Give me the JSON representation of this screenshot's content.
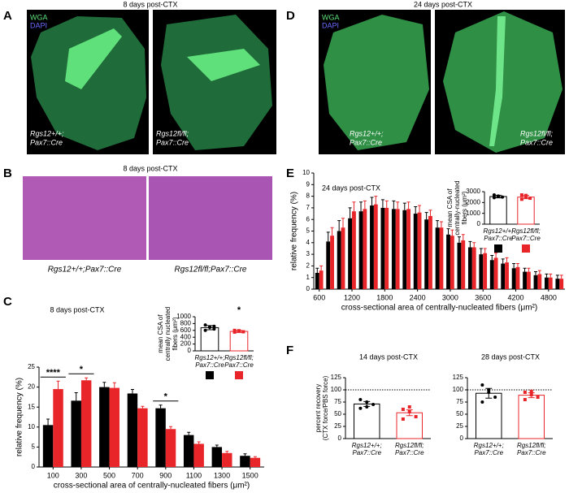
{
  "panels": {
    "A": {
      "letter": "A",
      "title": "8 days post-CTX",
      "stains": [
        "WGA",
        "DAPI"
      ],
      "images": [
        {
          "line1": "Rgs12+/+;",
          "line2": "Pax7::Cre"
        },
        {
          "line1": "Rgs12fl/fl;",
          "line2": "Pax7::Cre"
        }
      ]
    },
    "B": {
      "letter": "B",
      "title": "8 days post-CTX",
      "images": [
        "Rgs12+/+;Pax7::Cre",
        "Rgs12fl/fl;Pax7::Cre"
      ]
    },
    "C": {
      "letter": "C"
    },
    "D": {
      "letter": "D",
      "title": "24 days post-CTX",
      "stains": [
        "WGA",
        "DAPI"
      ],
      "images": [
        {
          "line1": "Rgs12+/+;",
          "line2": "Pax7::Cre"
        },
        {
          "line1": "Rgs12fl/fl;",
          "line2": "Pax7::Cre"
        }
      ]
    },
    "E": {
      "letter": "E"
    },
    "F": {
      "letter": "F"
    }
  },
  "chart_data": [
    {
      "type": "bar",
      "title": "8 days post-CTX",
      "xlabel": "cross-sectional area of centrally-nucleated fibers (μm²)",
      "ylabel": "relative frequency (%)",
      "categories": [
        "100",
        "300",
        "500",
        "700",
        "900",
        "1100",
        "1300",
        "1500"
      ],
      "series": [
        {
          "color": "#000000",
          "values": [
            10.5,
            16.6,
            20,
            18.4,
            14.7,
            8,
            5,
            2.8
          ],
          "errors": [
            1.5,
            2,
            1.2,
            1,
            0.8,
            0.7,
            0.5,
            0.5
          ]
        },
        {
          "color": "#e8262a",
          "values": [
            19.5,
            21.7,
            19.8,
            14.7,
            9.5,
            5.8,
            3.5,
            2.3
          ],
          "errors": [
            2,
            0.6,
            1.3,
            0.5,
            0.6,
            0.5,
            0.4,
            0.3
          ]
        }
      ],
      "ylim": [
        0,
        25
      ],
      "yticks": [
        0,
        5,
        10,
        15,
        20,
        25
      ],
      "annotations": [
        "****",
        "*",
        "*"
      ]
    },
    {
      "type": "dotbar",
      "ylabel": [
        "mean CSA of",
        "centrally nucleated",
        "fibers (μm²)"
      ],
      "categories": [
        [
          "Rgs12+/+;",
          "Pax7::Cre"
        ],
        [
          "Rgs12fl/fl;",
          "Pax7::Cre"
        ]
      ],
      "values": [
        680,
        570
      ],
      "errors": [
        60,
        30
      ],
      "colors": [
        "#000000",
        "#e8262a"
      ],
      "points": [
        [
          760,
          690,
          640,
          600,
          700,
          720
        ],
        [
          600,
          580,
          560,
          550,
          590
        ]
      ],
      "ylim": [
        0,
        1000
      ],
      "yticks": [
        0,
        200,
        400,
        600,
        800,
        1000
      ],
      "annotations": [
        "*"
      ]
    },
    {
      "type": "bar",
      "title": "24 days post-CTX",
      "xlabel": "cross-sectional area of centrally-nucleated fibers (μm²)",
      "ylabel": "relative frequency (%)",
      "categories": [
        "600",
        null,
        null,
        "1200",
        null,
        null,
        "1800",
        null,
        null,
        "2400",
        null,
        null,
        "3000",
        null,
        null,
        "3600",
        null,
        null,
        "4200",
        null,
        null,
        "4800",
        null
      ],
      "series": [
        {
          "color": "#000000",
          "values": [
            1.4,
            4.1,
            5,
            6.1,
            6.7,
            7.2,
            7,
            6.9,
            6.8,
            6.5,
            6,
            5.3,
            4.7,
            4,
            3.6,
            3,
            2.5,
            2.2,
            1.8,
            1.5,
            1.2,
            1,
            0.9
          ],
          "errors": [
            0.4,
            0.8,
            0.9,
            0.9,
            0.8,
            0.7,
            0.7,
            0.7,
            0.6,
            0.6,
            0.6,
            0.6,
            0.5,
            0.5,
            0.5,
            0.5,
            0.4,
            0.4,
            0.4,
            0.3,
            0.3,
            0.3,
            0.3
          ]
        },
        {
          "color": "#e8262a",
          "values": [
            1.6,
            4.6,
            5.3,
            6.7,
            6.9,
            7.3,
            7,
            6.9,
            6.9,
            6.6,
            6.3,
            5.3,
            4.6,
            4.2,
            3.6,
            3.1,
            2.7,
            2.3,
            1.9,
            1.5,
            1.3,
            1,
            0.9
          ],
          "errors": [
            0.4,
            0.7,
            0.8,
            0.8,
            0.7,
            0.7,
            0.6,
            0.6,
            0.6,
            0.6,
            0.5,
            0.5,
            0.5,
            0.5,
            0.4,
            0.4,
            0.4,
            0.4,
            0.3,
            0.3,
            0.3,
            0.3,
            0.3
          ]
        }
      ],
      "ylim": [
        0,
        10
      ],
      "yticks": [
        0,
        1,
        2,
        3,
        4,
        5,
        6,
        7,
        8,
        9,
        10
      ]
    },
    {
      "type": "dotbar",
      "ylabel": [
        "mean CSA of",
        "centrally-nucleated",
        "fibers (μm²)"
      ],
      "categories": [
        [
          "Rgs12+/+;",
          "Pax7::Cre"
        ],
        [
          "Rgs12fl/fl;",
          "Pax7::Cre"
        ]
      ],
      "values": [
        2550,
        2500
      ],
      "errors": [
        120,
        150
      ],
      "colors": [
        "#000000",
        "#e8262a"
      ],
      "points": [
        [
          2700,
          2600,
          2500,
          2450,
          2550
        ],
        [
          2700,
          2650,
          2400,
          2300,
          2500
        ]
      ],
      "ylim": [
        0,
        3000
      ],
      "yticks": [
        0,
        1000,
        2000,
        3000
      ]
    },
    {
      "type": "dotbar",
      "title": "14 days post-CTX",
      "ylabel": [
        "percent recovery",
        "(CTX force/PBS force)"
      ],
      "categories": [
        [
          "Rgs12+/+;",
          "Pax7::Cre"
        ],
        [
          "Rgs12fl/fl;",
          "Pax7::Cre"
        ]
      ],
      "values": [
        71,
        53
      ],
      "errors": [
        5,
        6
      ],
      "colors": [
        "#000000",
        "#e8262a"
      ],
      "points": [
        [
          80,
          75,
          70,
          62,
          65
        ],
        [
          60,
          55,
          45,
          40,
          65
        ]
      ],
      "ylim": [
        0,
        125
      ],
      "yticks": [
        0,
        25,
        50,
        75,
        100,
        125
      ],
      "refline": 100
    },
    {
      "type": "dotbar",
      "title": "28 days post-CTX",
      "categories": [
        [
          "Rgs12+/+;",
          "Pax7::Cre"
        ],
        [
          "Rgs12fl/fl;",
          "Pax7::Cre"
        ]
      ],
      "values": [
        93,
        89
      ],
      "errors": [
        10,
        5
      ],
      "colors": [
        "#000000",
        "#e8262a"
      ],
      "points": [
        [
          110,
          100,
          85,
          75,
          95
        ],
        [
          95,
          90,
          85,
          80,
          97
        ]
      ],
      "ylim": [
        0,
        125
      ],
      "yticks": [
        0,
        25,
        50,
        75,
        100,
        125
      ],
      "refline": 100
    }
  ]
}
